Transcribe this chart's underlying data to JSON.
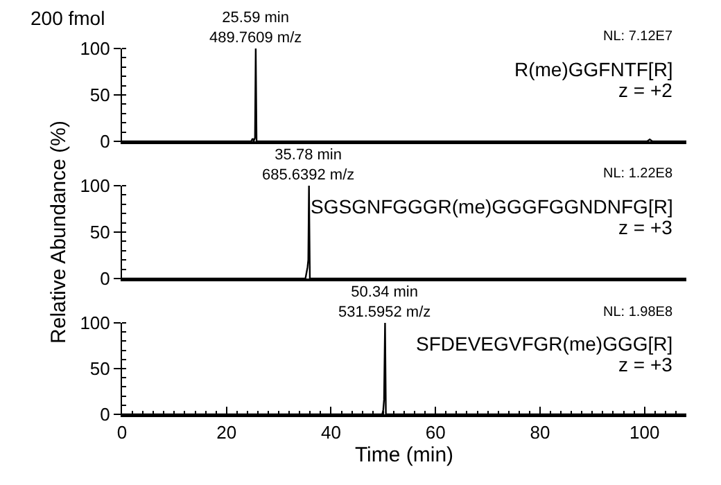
{
  "chart_data": [
    {
      "type": "line",
      "title": "200 fmol",
      "color": "#000000",
      "x": [
        0,
        24.7,
        25.0,
        25.2,
        25.45,
        25.59,
        25.75,
        26.0,
        100.5,
        101,
        101.5,
        108
      ],
      "values": [
        0,
        0,
        3,
        0,
        4,
        100,
        0,
        0,
        0,
        2,
        0,
        0
      ],
      "xlim": [
        0,
        108
      ],
      "ylim": [
        0,
        100
      ],
      "yticks": [
        0,
        50,
        100
      ],
      "tick_labels": "y",
      "annotations": [
        {
          "text": "25.59 min\n489.7609 m/z",
          "x": 25.59,
          "y": 100
        },
        "NL: 7.12E7",
        "R(me)GGFNTF[R]",
        "z = +2"
      ]
    },
    {
      "type": "line",
      "ylabel": "Relative Abundance (%)",
      "color": "#000000",
      "x": [
        0,
        35.1,
        35.3,
        35.5,
        35.65,
        35.78,
        35.95,
        36.2,
        108
      ],
      "values": [
        0,
        0,
        6,
        12,
        20,
        100,
        0,
        0,
        0
      ],
      "xlim": [
        0,
        108
      ],
      "ylim": [
        0,
        100
      ],
      "yticks": [
        0,
        50,
        100
      ],
      "tick_labels": "y",
      "annotations": [
        {
          "text": "35.78 min\n685.6392 m/z",
          "x": 35.78,
          "y": 100
        },
        "NL: 1.22E8",
        "SGSGNFGGGR(me)GGGFGGNDNFG[R]",
        "z = +3"
      ]
    },
    {
      "type": "line",
      "xlabel": "Time (min)",
      "color": "#000000",
      "x": [
        0,
        49.8,
        50.0,
        50.15,
        50.34,
        50.5,
        50.7,
        108
      ],
      "values": [
        0,
        0,
        5,
        16,
        100,
        0,
        0,
        0
      ],
      "xlim": [
        0,
        108
      ],
      "xticks": [
        0,
        20,
        40,
        60,
        80,
        100
      ],
      "ylim": [
        0,
        100
      ],
      "yticks": [
        0,
        50,
        100
      ],
      "annotations": [
        {
          "text": "50.34 min\n531.5952 m/z",
          "x": 50.34,
          "y": 100
        },
        "NL: 1.98E8",
        "SFDEVEGVFGR(me)GGG[R]",
        "z = +3"
      ]
    }
  ]
}
